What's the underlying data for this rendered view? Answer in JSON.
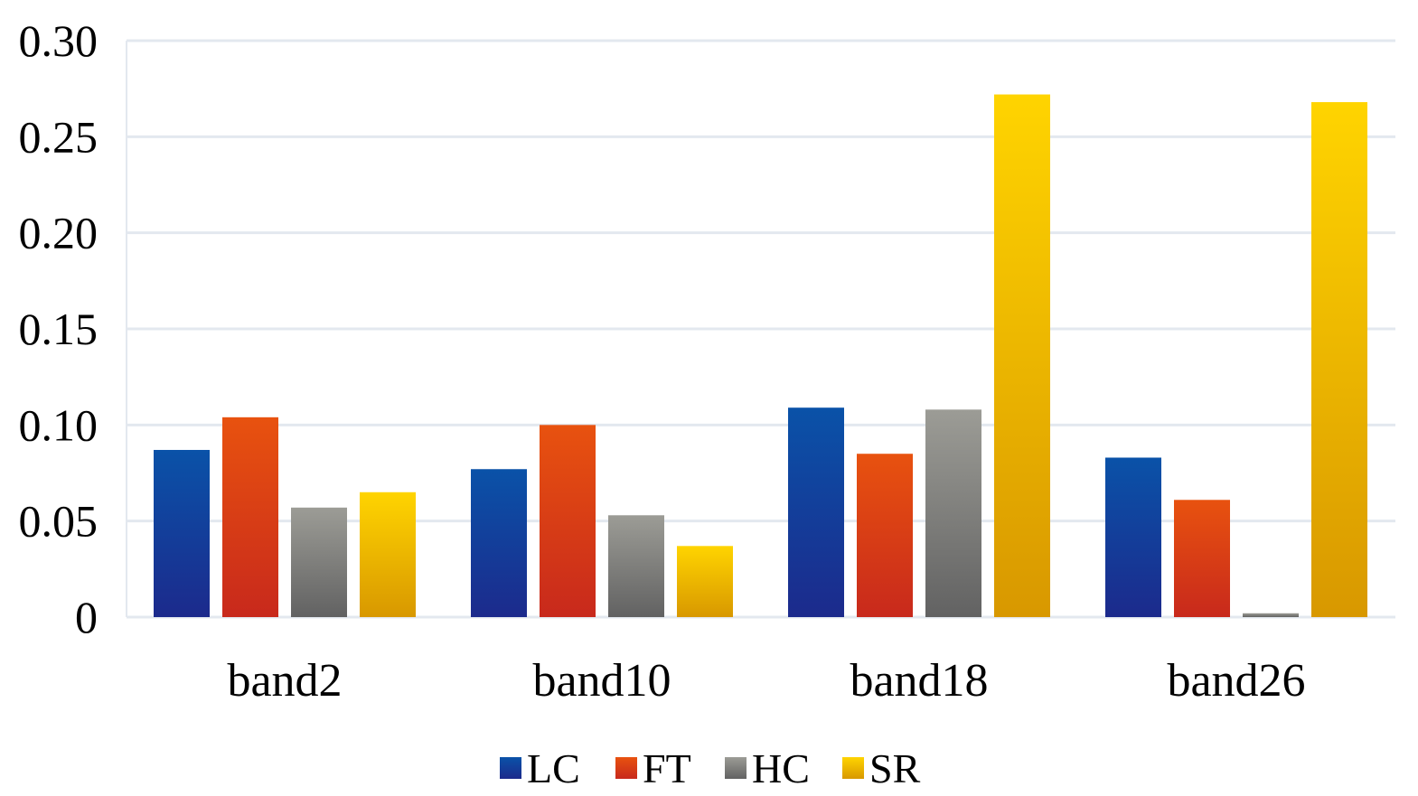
{
  "chart_data": {
    "type": "bar",
    "title": "",
    "xlabel": "",
    "ylabel": "",
    "categories": [
      "band2",
      "band10",
      "band18",
      "band26"
    ],
    "series": [
      {
        "name": "LC",
        "values": [
          0.087,
          0.077,
          0.109,
          0.083
        ],
        "color_top": "#0a52a8",
        "color_bottom": "#1c2a8c"
      },
      {
        "name": "FT",
        "values": [
          0.104,
          0.1,
          0.085,
          0.061
        ],
        "color_top": "#e8520f",
        "color_bottom": "#c8291c"
      },
      {
        "name": "HC",
        "values": [
          0.057,
          0.053,
          0.108,
          0.002
        ],
        "color_top": "#9c9c96",
        "color_bottom": "#626262"
      },
      {
        "name": "SR",
        "values": [
          0.065,
          0.037,
          0.272,
          0.268
        ],
        "color_top": "#ffd400",
        "color_bottom": "#d89800"
      }
    ],
    "ylim": [
      0,
      0.3
    ],
    "yticks": [
      "0",
      "0.05",
      "0.10",
      "0.15",
      "0.20",
      "0.25",
      "0.30"
    ],
    "grid": true,
    "legend": "bottom"
  }
}
